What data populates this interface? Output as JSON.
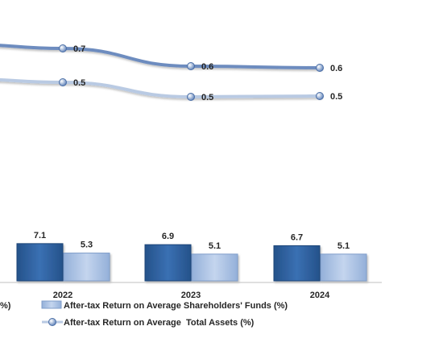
{
  "chart_data": {
    "type": "bar+line",
    "categories": [
      "2022",
      "2023",
      "2024"
    ],
    "bar_series": [
      {
        "values": [
          7.1,
          6.9,
          6.7
        ],
        "color": "#2c5f9e"
      },
      {
        "name": "After-tax Return on Average Shareholders' Funds (%)",
        "values": [
          5.3,
          5.1,
          5.1
        ],
        "color": "#a7c0e4"
      }
    ],
    "line_series": [
      {
        "values": [
          0.7,
          0.6,
          0.6
        ],
        "color": "#6d8cbf"
      },
      {
        "name": "After-tax Return on Average  Total Assets (%)",
        "values": [
          0.5,
          0.5,
          0.5
        ],
        "color": "#b9cae3"
      }
    ],
    "legend_fragment": "%)",
    "legend_placement": "bottom",
    "grid": false
  }
}
